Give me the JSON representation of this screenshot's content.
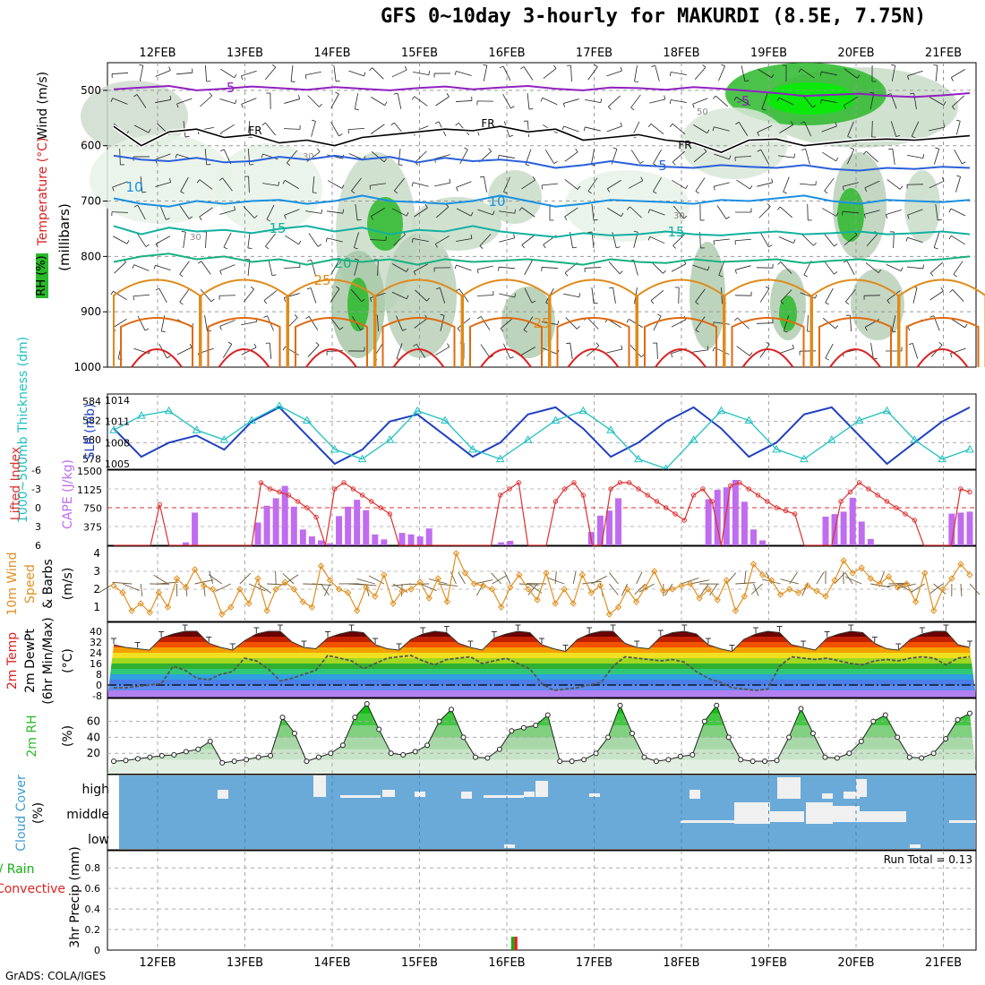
{
  "title": "GFS 0~10day 3-hourly for MAKURDI (8.5E, 7.75N)",
  "footer": "GrADS: COLA/IGES",
  "colors": {
    "rh_green": "#2bb82b",
    "bright_green": "#00f000",
    "temp_red": "#dd2020",
    "temp_orange": "#e08a1a",
    "temp_teal": "#12b0a0",
    "temp_blue": "#2a60d8",
    "temp_purple": "#9020c0",
    "slp_blue": "#2040c0",
    "thickness_cyan": "#20c0c0",
    "cape_violet": "#c06cf0",
    "li_red": "#dd3030",
    "wind_orange": "#e09020",
    "cloud_blue": "#6aaad8",
    "precip_red": "#e02020",
    "precip_green": "#10b010"
  },
  "chart_data": [
    {
      "type": "heatmap",
      "panel": "upper-air",
      "legend": [
        "Wind (m/s)",
        "Temperature (°C)",
        "RH (%)"
      ],
      "ylabel": "(millibars)",
      "ylim": [
        1000,
        450
      ],
      "y_ticks": [
        "500",
        "600",
        "700",
        "800",
        "900",
        "1000"
      ],
      "dates": [
        "12FEB",
        "13FEB",
        "14FEB",
        "15FEB",
        "16FEB",
        "17FEB",
        "18FEB",
        "19FEB",
        "20FEB",
        "21FEB"
      ],
      "isotherm_labels": [
        {
          "value": "-5",
          "pressure": 500
        },
        {
          "value": "-5",
          "pressure": 515
        },
        {
          "value": "FR",
          "pressure": 585
        },
        {
          "value": "FR",
          "pressure": 580
        },
        {
          "value": "FR",
          "pressure": 600
        },
        {
          "value": "5",
          "pressure": 640
        },
        {
          "value": "10",
          "pressure": 680
        },
        {
          "value": "10",
          "pressure": 705
        },
        {
          "value": "15",
          "pressure": 755
        },
        {
          "value": "15",
          "pressure": 760
        },
        {
          "value": "20",
          "pressure": 810
        },
        {
          "value": "25",
          "pressure": 850
        },
        {
          "value": "25",
          "pressure": 930
        }
      ],
      "rh_labels": [
        "30",
        "30",
        "30",
        "50"
      ],
      "series": [
        {
          "name": "-5",
          "pressure": [
            498,
            495,
            492,
            500,
            497,
            493,
            496,
            499,
            494,
            497,
            500,
            496,
            493,
            498,
            495,
            492,
            497,
            500,
            495,
            496,
            499,
            494,
            497,
            501,
            505,
            510,
            508,
            506,
            510,
            512,
            509,
            505
          ]
        },
        {
          "name": "FR",
          "pressure": [
            565,
            600,
            575,
            570,
            585,
            580,
            595,
            590,
            600,
            585,
            580,
            575,
            570,
            573,
            565,
            575,
            570,
            590,
            585,
            580,
            590,
            595,
            612,
            590,
            588,
            600,
            595,
            590,
            588,
            590,
            586,
            582
          ]
        },
        {
          "name": "5",
          "pressure": [
            618,
            625,
            628,
            622,
            630,
            628,
            620,
            625,
            618,
            625,
            620,
            630,
            622,
            628,
            625,
            630,
            640,
            635,
            628,
            635,
            638,
            640,
            635,
            638,
            640,
            635,
            642,
            645,
            640,
            642,
            638,
            640
          ]
        },
        {
          "name": "10",
          "pressure": [
            695,
            705,
            710,
            700,
            705,
            700,
            698,
            705,
            700,
            690,
            700,
            702,
            705,
            700,
            690,
            700,
            710,
            705,
            698,
            700,
            702,
            705,
            698,
            700,
            695,
            690,
            700,
            705,
            698,
            700,
            702,
            698
          ]
        },
        {
          "name": "15",
          "pressure": [
            745,
            760,
            748,
            755,
            752,
            758,
            750,
            745,
            755,
            748,
            760,
            752,
            755,
            745,
            755,
            760,
            765,
            758,
            762,
            760,
            755,
            760,
            762,
            758,
            755,
            760,
            758,
            755,
            760,
            758,
            755,
            760
          ]
        },
        {
          "name": "20",
          "pressure": [
            810,
            800,
            795,
            805,
            800,
            810,
            805,
            815,
            805,
            810,
            805,
            815,
            805,
            810,
            808,
            805,
            810,
            815,
            805,
            810,
            812,
            805,
            810,
            808,
            805,
            812,
            808,
            805,
            810,
            808,
            805,
            800
          ]
        },
        {
          "name": "25",
          "pressure": [
            850,
            850,
            850,
            850,
            850,
            850,
            850,
            850,
            850,
            850,
            850,
            850,
            850,
            850,
            850,
            850,
            850,
            850,
            850,
            850,
            850,
            850,
            850,
            850,
            850,
            850,
            850,
            850,
            850,
            850,
            850,
            850
          ]
        }
      ]
    },
    {
      "type": "line",
      "panel": "slp-thickness",
      "legend": [
        "1000~500mb Thickness (dm)",
        "SLP (mb)"
      ],
      "y_left_ticks": [
        "584",
        "582",
        "580",
        "578"
      ],
      "y_right_ticks": [
        "1014",
        "1011",
        "1008",
        "1005"
      ],
      "series": [
        {
          "name": "SLP (mb)",
          "values": [
            1010,
            1006,
            1008,
            1009,
            1007,
            1011,
            1013,
            1009,
            1005,
            1007,
            1011,
            1012,
            1009,
            1006,
            1008,
            1012,
            1013,
            1010,
            1006,
            1008,
            1011,
            1013,
            1010,
            1006,
            1008,
            1012,
            1013,
            1009,
            1005,
            1008,
            1011,
            1013
          ]
        },
        {
          "name": "1000~500mb Thickness (dm)",
          "values": [
            581,
            582.5,
            583,
            581,
            580,
            582,
            583.5,
            582,
            579,
            578,
            580,
            583,
            582,
            579,
            578,
            580,
            582,
            583,
            581,
            578,
            577,
            580,
            583,
            582,
            579,
            578,
            580,
            582,
            583,
            580,
            578,
            579
          ]
        }
      ]
    },
    {
      "type": "bar",
      "panel": "cape-li",
      "legend": [
        "Lifted Index",
        "CAPE (J/kg)"
      ],
      "y_left_ticks": [
        "-6",
        "-3",
        "0",
        "3",
        "6"
      ],
      "y_right_ticks": [
        "1500",
        "1125",
        "750",
        "375"
      ],
      "series": [
        {
          "name": "CAPE (J/kg)",
          "values": [
            0,
            0,
            0,
            0,
            0,
            0,
            0,
            0,
            60,
            660,
            0,
            0,
            0,
            0,
            0,
            0,
            460,
            800,
            950,
            1200,
            780,
            320,
            180,
            100,
            40,
            590,
            780,
            920,
            710,
            220,
            120,
            0,
            250,
            220,
            180,
            340,
            0,
            0,
            0,
            0,
            0,
            0,
            0,
            60,
            90,
            0,
            0,
            0,
            0,
            0,
            0,
            0,
            0,
            270,
            600,
            700,
            950,
            0,
            0,
            0,
            0,
            0,
            0,
            0,
            0,
            0,
            930,
            1120,
            1170,
            1320,
            880,
            320,
            100,
            0,
            0,
            0,
            0,
            0,
            0,
            580,
            630,
            680,
            960,
            480,
            130,
            0,
            0,
            0,
            0,
            0,
            0,
            0,
            0,
            640,
            660,
            680
          ]
        },
        {
          "name": "Lifted Index",
          "values": [
            6,
            6,
            6,
            6,
            6,
            -0.5,
            6,
            6,
            6,
            6,
            6,
            6,
            6,
            6,
            6,
            6,
            -4,
            -3,
            -2.5,
            -2,
            -1,
            0,
            1.5,
            6,
            -3,
            -4,
            -3,
            -2,
            -1,
            0,
            1,
            6,
            6,
            6,
            6,
            6,
            6,
            6,
            6,
            6,
            6,
            6,
            -2,
            -3,
            -4,
            6,
            6,
            6,
            -1,
            -3,
            -4,
            -2,
            6,
            6,
            -3,
            -4,
            -4,
            -3,
            -2,
            -1,
            0,
            1,
            2,
            -2,
            -3,
            -1,
            6,
            -3.5,
            -4,
            -3,
            -2,
            -1,
            0,
            0.5,
            1,
            6,
            6,
            6,
            6,
            -1,
            -2.5,
            -4,
            -3,
            -2,
            -1,
            0,
            1,
            2,
            6,
            6,
            6,
            6,
            -3,
            -2.5
          ]
        }
      ]
    },
    {
      "type": "line",
      "panel": "10m-wind",
      "legend": [
        "10m Wind",
        "Speed",
        "& Barbs",
        "(m/s)"
      ],
      "y_ticks": [
        "4",
        "3",
        "2",
        "1"
      ],
      "series": [
        {
          "name": "Speed (m/s)",
          "values": [
            2.2,
            1.8,
            0.8,
            1.2,
            0.7,
            1.8,
            1.0,
            2.6,
            2.1,
            3.1,
            2.2,
            2.0,
            0.6,
            1.0,
            2.0,
            1.2,
            2.6,
            0.8,
            2.0,
            2.4,
            2.0,
            1.3,
            1.0,
            3.3,
            2.5,
            2.0,
            1.8,
            0.8,
            2.1,
            1.6,
            2.8,
            1.2,
            1.9,
            2.0,
            2.4,
            1.5,
            2.6,
            1.3,
            4.0,
            2.9,
            2.3,
            2.2,
            2.0,
            1.0,
            2.1,
            2.8,
            2.0,
            1.4,
            2.9,
            1.2,
            2.0,
            1.2,
            2.8,
            1.8,
            2.2,
            0.6,
            1.0,
            2.0,
            1.3,
            2.1,
            3.0,
            1.9,
            2.0,
            2.2,
            2.3,
            1.5,
            2.0,
            1.4,
            2.5,
            0.8,
            1.6,
            3.4,
            2.8,
            2.5,
            1.7,
            2.0,
            1.8,
            2.2,
            1.9,
            1.6,
            2.5,
            3.6,
            2.9,
            3.2,
            2.6,
            2.3,
            2.7,
            2.1,
            2.3,
            1.3,
            2.9,
            0.8,
            2.0,
            2.6,
            3.4,
            2.8
          ]
        }
      ]
    },
    {
      "type": "area",
      "panel": "2m-temp",
      "legend": [
        "2m Temp",
        "2m DewPt",
        "(6hr Min/Max)",
        "(°C)"
      ],
      "y_ticks": [
        "40",
        "32",
        "24",
        "16",
        "8",
        "0",
        "-8"
      ],
      "series": [
        {
          "name": "2m Temp",
          "values": [
            30,
            28,
            27,
            26,
            35,
            38,
            40,
            40,
            31,
            28,
            26,
            33,
            38,
            40,
            40,
            32,
            28,
            27,
            35,
            38,
            40,
            39,
            30,
            27,
            26,
            34,
            38,
            40,
            39,
            31,
            28,
            26,
            35,
            38,
            40,
            39,
            30,
            27,
            25,
            34,
            38,
            40,
            40,
            31,
            28,
            27,
            36,
            39,
            40,
            38,
            30,
            27,
            25,
            34,
            38,
            40,
            39,
            30,
            28,
            26,
            35,
            38,
            40,
            39,
            31,
            27,
            26,
            34,
            38,
            40,
            40,
            30,
            28
          ]
        },
        {
          "name": "2m DewPt",
          "values": [
            -2,
            -2,
            -1,
            0,
            1,
            14,
            11,
            5,
            4,
            8,
            10,
            20,
            18,
            12,
            3,
            5,
            8,
            11,
            22,
            20,
            18,
            12,
            16,
            20,
            21,
            22,
            18,
            15,
            19,
            20,
            21,
            16,
            18,
            20,
            16,
            12,
            1,
            -4,
            -3,
            -2,
            0,
            2,
            14,
            21,
            20,
            19,
            18,
            19,
            17,
            10,
            5,
            2,
            -2,
            -3,
            -4,
            -3,
            14,
            21,
            20,
            19,
            20,
            18,
            16,
            15,
            18,
            19,
            18,
            20,
            21,
            20,
            15,
            20,
            21
          ]
        }
      ]
    },
    {
      "type": "area",
      "panel": "2m-rh",
      "legend": [
        "2m RH",
        "(%)"
      ],
      "y_ticks": [
        "60",
        "40",
        "20"
      ],
      "series": [
        {
          "name": "2m RH",
          "values": [
            10,
            11,
            13,
            15,
            17,
            18,
            22,
            25,
            35,
            8,
            10,
            12,
            15,
            17,
            65,
            45,
            10,
            15,
            20,
            30,
            65,
            82,
            50,
            20,
            18,
            22,
            30,
            60,
            75,
            40,
            15,
            14,
            25,
            48,
            52,
            55,
            68,
            10,
            10,
            12,
            20,
            40,
            80,
            45,
            15,
            10,
            12,
            16,
            18,
            60,
            80,
            40,
            12,
            10,
            10,
            11,
            40,
            76,
            45,
            15,
            14,
            20,
            35,
            60,
            68,
            40,
            15,
            14,
            20,
            38,
            62,
            70
          ]
        }
      ]
    },
    {
      "type": "heatmap",
      "panel": "cloud-cover",
      "legend": [
        "Cloud Cover",
        "(%)"
      ],
      "y_ticks": [
        "high",
        "middle",
        "low"
      ]
    },
    {
      "type": "bar",
      "panel": "precip",
      "legend": [
        "Total / Rain",
        "Convective",
        "3hr Precip (mm)"
      ],
      "run_total": "Run Total = 0.13",
      "y_ticks": [
        "0.8",
        "0.6",
        "0.4",
        "0.2",
        "0"
      ],
      "ylim": [
        0,
        0.95
      ],
      "series": [
        {
          "name": "Total / Rain",
          "x_day": 4.08,
          "values": [
            0.13
          ]
        },
        {
          "name": "Convective",
          "x_day": 4.08,
          "values": [
            0.13
          ]
        }
      ]
    }
  ]
}
